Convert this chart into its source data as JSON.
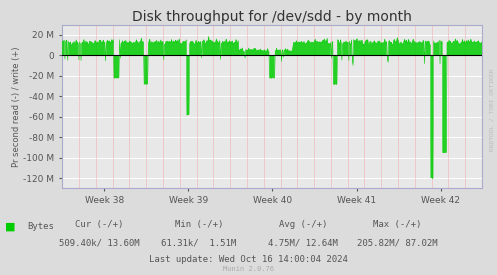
{
  "title": "Disk throughput for /dev/sdd - by month",
  "ylabel": "Pr second read (-) / write (+)",
  "background_color": "#DCDCDC",
  "plot_bg_color": "#E8E8E8",
  "grid_color_white": "#FFFFFF",
  "grid_color_pink": "#F0B0B0",
  "line_color": "#00CC00",
  "zero_line_color": "#000000",
  "ylim": [
    -130000000,
    30000000
  ],
  "yticks": [
    -120000000,
    -100000000,
    -80000000,
    -60000000,
    -40000000,
    -20000000,
    0,
    20000000
  ],
  "ytick_labels": [
    "-120 M",
    "-100 M",
    "-80 M",
    "-60 M",
    "-40 M",
    "-20 M",
    "0",
    "20 M"
  ],
  "xtick_labels": [
    "Week 38",
    "Week 39",
    "Week 40",
    "Week 41",
    "Week 42"
  ],
  "legend_label": "Bytes",
  "legend_color": "#00CC00",
  "cur_label": "Cur (-/+)",
  "min_label": "Min (-/+)",
  "avg_label": "Avg (-/+)",
  "max_label": "Max (-/+)",
  "cur_val": "509.40k/ 13.60M",
  "min_val": "61.31k/  1.51M",
  "avg_val": "4.75M/ 12.64M",
  "max_val": "205.82M/ 87.02M",
  "last_update": "Last update: Wed Oct 16 14:00:04 2024",
  "munin_label": "Munin 2.0.76",
  "rrdtool_label": "RRDTOOL / TOBI OETIKER",
  "spine_color": "#AAAACC",
  "tick_color": "#555555",
  "text_color": "#555555",
  "title_fontsize": 10,
  "axis_label_fontsize": 6,
  "tick_fontsize": 6.5,
  "legend_fontsize": 6.5,
  "num_points": 600
}
